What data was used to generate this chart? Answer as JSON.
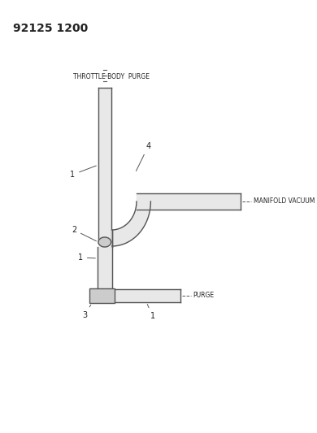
{
  "title": "92125 1200",
  "bg": "#ffffff",
  "lc": "#555555",
  "tc": "#222222",
  "fill_tube": "#e8e8e8",
  "fill_dark": "#cccccc",
  "labels": {
    "header": "THROTTLE BODY  PURGE",
    "manifold": "MANIFOLD VACUUM",
    "purge": "PURGE",
    "n1": "1",
    "n2": "2",
    "n3": "3",
    "n4": "4"
  },
  "fs_small": 5.5,
  "fs_num": 7,
  "fs_title": 10
}
